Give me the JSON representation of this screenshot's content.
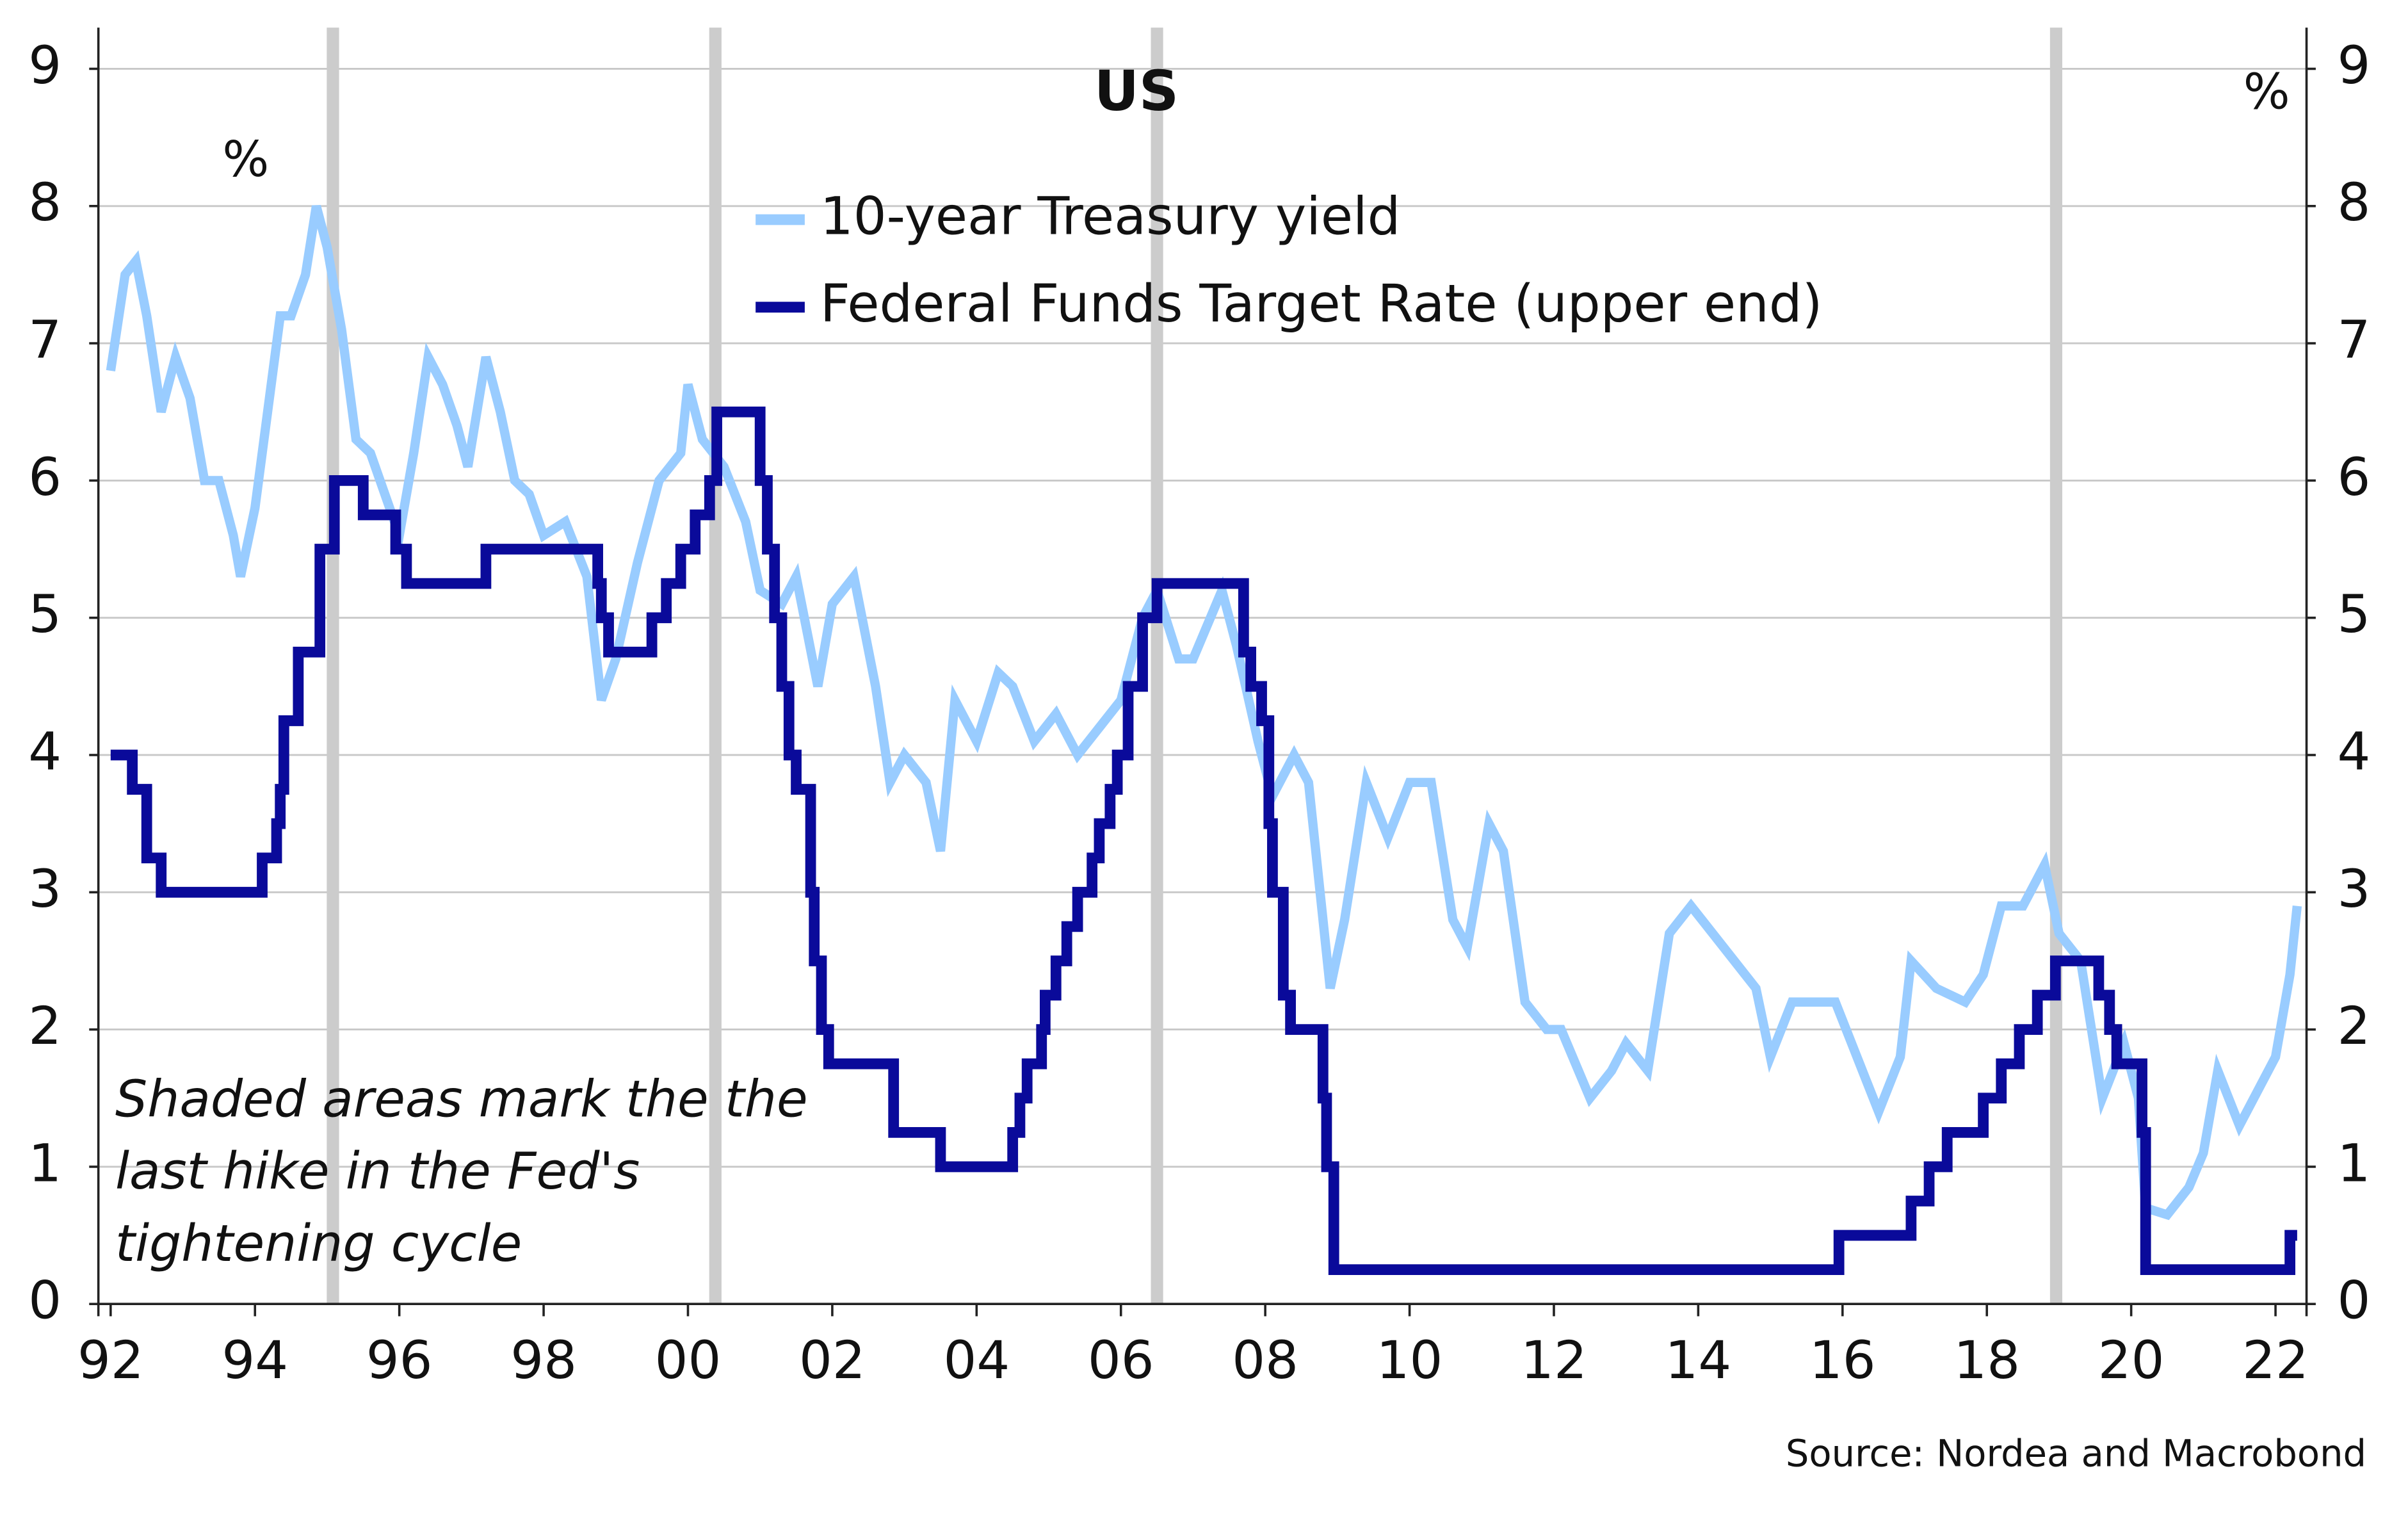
{
  "chart_data": {
    "type": "line",
    "title": "US",
    "y_unit_left": "%",
    "y_unit_right": "%",
    "annotation": [
      "Shaded areas mark the the",
      "last hike in the Fed's",
      "tightening cycle"
    ],
    "source": "Source: Nordea and Macrobond",
    "xlim": [
      1991.83,
      2022.43
    ],
    "xticks": [
      {
        "value": 1992,
        "label": "92"
      },
      {
        "value": 1994,
        "label": "94"
      },
      {
        "value": 1996,
        "label": "96"
      },
      {
        "value": 1998,
        "label": "98"
      },
      {
        "value": 2000,
        "label": "00"
      },
      {
        "value": 2002,
        "label": "02"
      },
      {
        "value": 2004,
        "label": "04"
      },
      {
        "value": 2006,
        "label": "06"
      },
      {
        "value": 2008,
        "label": "08"
      },
      {
        "value": 2010,
        "label": "10"
      },
      {
        "value": 2012,
        "label": "12"
      },
      {
        "value": 2014,
        "label": "14"
      },
      {
        "value": 2016,
        "label": "16"
      },
      {
        "value": 2018,
        "label": "18"
      },
      {
        "value": 2020,
        "label": "20"
      },
      {
        "value": 2022,
        "label": "22"
      }
    ],
    "ylim": [
      0,
      9.3
    ],
    "yticks": [
      0,
      1,
      2,
      3,
      4,
      5,
      6,
      7,
      8,
      9
    ],
    "y2lim": [
      0,
      9.3
    ],
    "y2ticks": [
      0,
      1,
      2,
      3,
      4,
      5,
      6,
      7,
      8,
      9
    ],
    "grid": true,
    "shaded_x": [
      1995.08,
      2000.38,
      2006.5,
      2018.96
    ],
    "shaded_color": "#cccccc",
    "series": [
      {
        "name": "10-year Treasury yield",
        "color": "#99ccff",
        "step": false,
        "x": [
          1992.0,
          1992.2,
          1992.35,
          1992.5,
          1992.7,
          1992.9,
          1993.1,
          1993.3,
          1993.5,
          1993.7,
          1993.8,
          1994.0,
          1994.2,
          1994.35,
          1994.5,
          1994.7,
          1994.85,
          1995.0,
          1995.2,
          1995.4,
          1995.6,
          1995.8,
          1996.0,
          1996.2,
          1996.4,
          1996.6,
          1996.8,
          1996.95,
          1997.2,
          1997.4,
          1997.6,
          1997.8,
          1998.0,
          1998.3,
          1998.6,
          1998.8,
          1999.0,
          1999.3,
          1999.6,
          1999.9,
          2000.0,
          2000.2,
          2000.5,
          2000.8,
          2001.0,
          2001.3,
          2001.5,
          2001.8,
          2002.0,
          2002.3,
          2002.6,
          2002.8,
          2003.0,
          2003.3,
          2003.5,
          2003.7,
          2004.0,
          2004.3,
          2004.5,
          2004.8,
          2005.1,
          2005.4,
          2005.7,
          2006.0,
          2006.3,
          2006.5,
          2006.8,
          2007.0,
          2007.4,
          2007.6,
          2007.9,
          2008.1,
          2008.4,
          2008.6,
          2008.9,
          2009.1,
          2009.4,
          2009.7,
          2010.0,
          2010.3,
          2010.6,
          2010.8,
          2011.1,
          2011.3,
          2011.6,
          2011.9,
          2012.1,
          2012.5,
          2012.8,
          2013.0,
          2013.3,
          2013.6,
          2013.9,
          2014.2,
          2014.5,
          2014.8,
          2015.0,
          2015.3,
          2015.6,
          2015.9,
          2016.2,
          2016.5,
          2016.8,
          2016.95,
          2017.3,
          2017.7,
          2017.95,
          2018.2,
          2018.5,
          2018.8,
          2019.0,
          2019.3,
          2019.6,
          2019.9,
          2020.1,
          2020.2,
          2020.5,
          2020.8,
          2021.0,
          2021.2,
          2021.5,
          2021.8,
          2022.0,
          2022.2,
          2022.3
        ],
        "values": [
          6.8,
          7.5,
          7.6,
          7.2,
          6.5,
          6.9,
          6.6,
          6.0,
          6.0,
          5.6,
          5.3,
          5.8,
          6.6,
          7.2,
          7.2,
          7.5,
          8.0,
          7.7,
          7.1,
          6.3,
          6.2,
          5.9,
          5.6,
          6.2,
          6.9,
          6.7,
          6.4,
          6.1,
          6.9,
          6.5,
          6.0,
          5.9,
          5.6,
          5.7,
          5.3,
          4.4,
          4.7,
          5.4,
          6.0,
          6.2,
          6.7,
          6.3,
          6.1,
          5.7,
          5.2,
          5.1,
          5.3,
          4.5,
          5.1,
          5.3,
          4.5,
          3.8,
          4.0,
          3.8,
          3.3,
          4.4,
          4.1,
          4.6,
          4.5,
          4.1,
          4.3,
          4.0,
          4.2,
          4.4,
          5.0,
          5.2,
          4.7,
          4.7,
          5.2,
          4.8,
          4.1,
          3.7,
          4.0,
          3.8,
          2.3,
          2.8,
          3.8,
          3.4,
          3.8,
          3.8,
          2.8,
          2.6,
          3.5,
          3.3,
          2.2,
          2.0,
          2.0,
          1.5,
          1.7,
          1.9,
          1.7,
          2.7,
          2.9,
          2.7,
          2.5,
          2.3,
          1.8,
          2.2,
          2.2,
          2.2,
          1.8,
          1.4,
          1.8,
          2.5,
          2.3,
          2.2,
          2.4,
          2.9,
          2.9,
          3.2,
          2.7,
          2.5,
          1.5,
          1.9,
          1.5,
          0.7,
          0.65,
          0.85,
          1.1,
          1.7,
          1.3,
          1.6,
          1.8,
          2.4,
          2.9
        ]
      },
      {
        "name": "Federal Funds Target Rate (upper end)",
        "color": "#0a0a9a",
        "step": true,
        "x": [
          1992.0,
          1992.3,
          1992.5,
          1992.7,
          1994.1,
          1994.3,
          1994.35,
          1994.4,
          1994.6,
          1994.9,
          1995.1,
          1995.5,
          1995.95,
          1996.1,
          1997.2,
          1998.75,
          1998.8,
          1998.9,
          1999.5,
          1999.7,
          1999.9,
          2000.1,
          2000.3,
          2000.4,
          2001.0,
          2001.1,
          2001.2,
          2001.3,
          2001.4,
          2001.5,
          2001.7,
          2001.75,
          2001.85,
          2001.95,
          2002.85,
          2003.5,
          2004.5,
          2004.6,
          2004.7,
          2004.9,
          2004.95,
          2005.1,
          2005.25,
          2005.4,
          2005.6,
          2005.7,
          2005.85,
          2005.95,
          2006.1,
          2006.3,
          2006.5,
          2007.7,
          2007.8,
          2007.95,
          2008.05,
          2008.1,
          2008.25,
          2008.35,
          2008.8,
          2008.85,
          2008.95,
          2015.95,
          2016.95,
          2017.2,
          2017.45,
          2017.95,
          2018.2,
          2018.45,
          2018.7,
          2018.95,
          2019.55,
          2019.7,
          2019.8,
          2020.15,
          2020.2,
          2022.2,
          2022.3
        ],
        "values": [
          4.0,
          3.75,
          3.25,
          3.0,
          3.25,
          3.5,
          3.75,
          4.25,
          4.75,
          5.5,
          6.0,
          5.75,
          5.5,
          5.25,
          5.5,
          5.25,
          5.0,
          4.75,
          5.0,
          5.25,
          5.5,
          5.75,
          6.0,
          6.5,
          6.0,
          5.5,
          5.0,
          4.5,
          4.0,
          3.75,
          3.0,
          2.5,
          2.0,
          1.75,
          1.25,
          1.0,
          1.25,
          1.5,
          1.75,
          2.0,
          2.25,
          2.5,
          2.75,
          3.0,
          3.25,
          3.5,
          3.75,
          4.0,
          4.5,
          5.0,
          5.25,
          4.75,
          4.5,
          4.25,
          3.5,
          3.0,
          2.25,
          2.0,
          1.5,
          1.0,
          0.25,
          0.5,
          0.75,
          1.0,
          1.25,
          1.5,
          1.75,
          2.0,
          2.25,
          2.5,
          2.25,
          2.0,
          1.75,
          1.25,
          0.25,
          0.5,
          0.5
        ]
      }
    ]
  }
}
